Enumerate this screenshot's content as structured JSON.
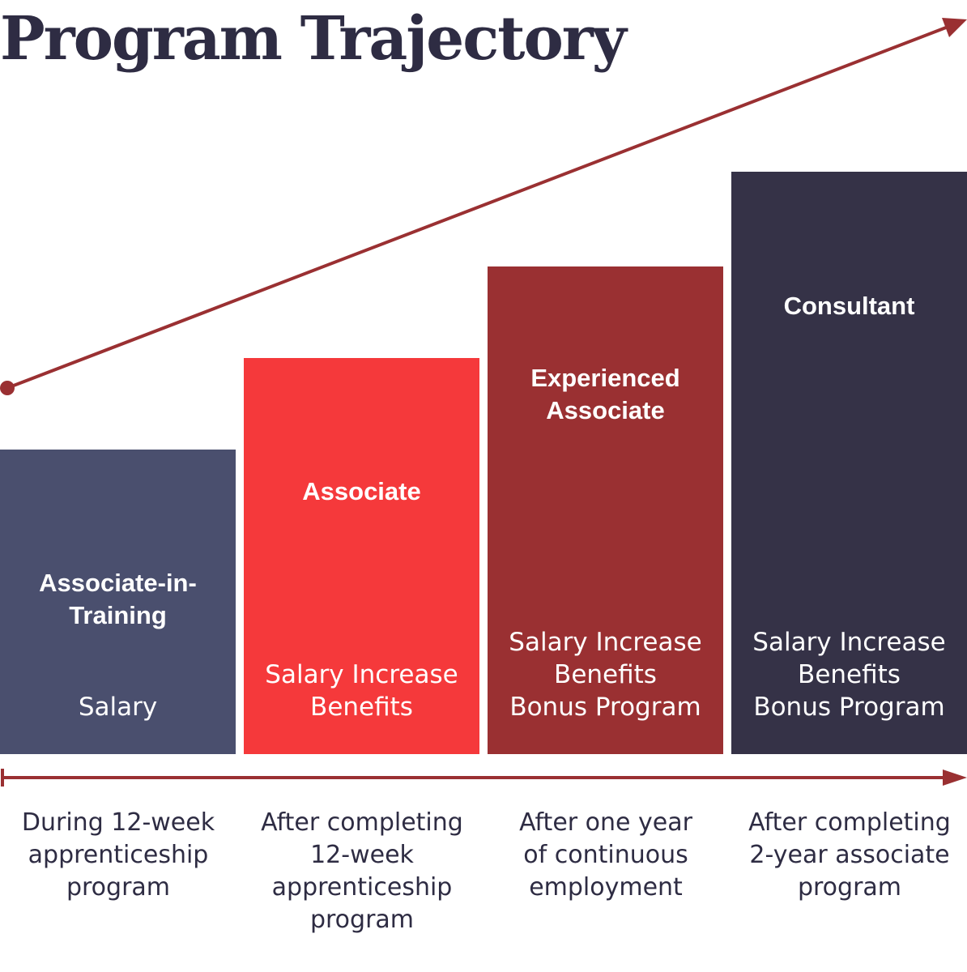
{
  "title": "Program Trajectory",
  "colors": {
    "arrow": "#9a3032",
    "text": "#2e2c43"
  },
  "stages": [
    {
      "title": "Associate-in-Training",
      "title_lines": [
        "Associate-in-",
        "Training"
      ],
      "benefits": [
        "Salary"
      ],
      "caption_lines": [
        "During 12-week",
        "apprenticeship",
        "program"
      ],
      "color": "#4a4f6e"
    },
    {
      "title": "Associate",
      "title_lines": [
        "Associate"
      ],
      "benefits": [
        "Salary Increase",
        "Benefits"
      ],
      "caption_lines": [
        "After completing",
        "12-week",
        "apprenticeship",
        "program"
      ],
      "color": "#f5393b"
    },
    {
      "title": "Experienced Associate",
      "title_lines": [
        "Experienced",
        "Associate"
      ],
      "benefits": [
        "Salary Increase",
        "Benefits",
        "Bonus Program"
      ],
      "caption_lines": [
        "After one year",
        "of continuous",
        "employment"
      ],
      "color": "#9a3032"
    },
    {
      "title": "Consultant",
      "title_lines": [
        "Consultant"
      ],
      "benefits": [
        "Salary Increase",
        "Benefits",
        "Bonus Program"
      ],
      "caption_lines": [
        "After completing",
        "2-year associate",
        "program"
      ],
      "color": "#353247"
    }
  ]
}
